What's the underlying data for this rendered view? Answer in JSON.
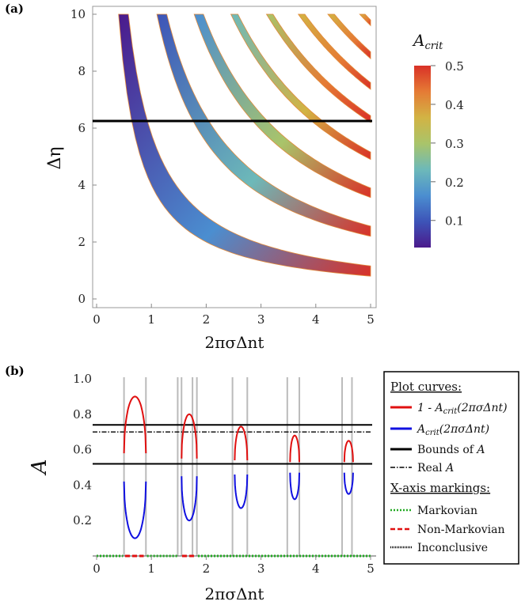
{
  "chart_data": [
    {
      "panel_label": "(a)",
      "type": "heatmap",
      "xlabel": "2πσΔnt",
      "ylabel": "Δη",
      "xlim": [
        0,
        5
      ],
      "ylim": [
        0,
        10
      ],
      "x_ticks": [
        "0",
        "1",
        "2",
        "3",
        "4",
        "5"
      ],
      "y_ticks": [
        "0",
        "2",
        "4",
        "6",
        "8",
        "10"
      ],
      "colorbar": {
        "title": "A_crit",
        "range": [
          0.03,
          0.5
        ],
        "ticks": [
          "0.1",
          "0.2",
          "0.3",
          "0.4",
          "0.5"
        ],
        "colors": [
          "#4b1a8c",
          "#3d54b8",
          "#4b8ed0",
          "#6db9b9",
          "#a9c46a",
          "#d2b344",
          "#e57b35",
          "#d93127"
        ]
      },
      "bands": [
        {
          "index": 1,
          "x_at_y10_from": 0.4,
          "x_at_y10_to": 0.58,
          "x_at_y2_from": 2.0,
          "x_at_y2_to": 2.85,
          "tail_y_at_x5": 0.62
        },
        {
          "index": 2,
          "x_at_y10_from": 1.1,
          "x_at_y10_to": 1.28
        },
        {
          "index": 3,
          "x_at_y10_from": 1.78,
          "x_at_y10_to": 1.95
        },
        {
          "index": 4,
          "x_at_y10_from": 2.45,
          "x_at_y10_to": 2.58
        },
        {
          "index": 5,
          "x_at_y10_from": 3.1,
          "x_at_y10_to": 3.22
        },
        {
          "index": 6,
          "x_at_y10_from": 3.68,
          "x_at_y10_to": 3.8
        },
        {
          "index": 7,
          "x_at_y10_from": 4.22,
          "x_at_y10_to": 4.34
        },
        {
          "index": 8,
          "x_at_y10_from": 4.8,
          "x_at_y10_to": 4.9
        }
      ],
      "reference_line": {
        "y": 6.25,
        "color": "#000000"
      }
    },
    {
      "panel_label": "(b)",
      "type": "line",
      "xlabel": "2πσΔnt",
      "ylabel": "A",
      "xlim": [
        0,
        5
      ],
      "ylim": [
        0,
        1
      ],
      "x_ticks": [
        "0",
        "1",
        "2",
        "3",
        "4",
        "5"
      ],
      "y_ticks": [
        "0.2",
        "0.4",
        "0.6",
        "0.8",
        "1.0"
      ],
      "arcs": [
        {
          "x_from": 0.5,
          "x_to": 0.9,
          "upper_peak": 0.9,
          "lower_min": 0.1,
          "edge_upper": 0.58,
          "edge_lower": 0.42
        },
        {
          "x_from": 1.55,
          "x_to": 1.83,
          "upper_peak": 0.8,
          "lower_min": 0.2,
          "edge_upper": 0.55,
          "edge_lower": 0.45
        },
        {
          "x_from": 2.52,
          "x_to": 2.75,
          "upper_peak": 0.73,
          "lower_min": 0.27,
          "edge_upper": 0.54,
          "edge_lower": 0.46
        },
        {
          "x_from": 3.53,
          "x_to": 3.7,
          "upper_peak": 0.68,
          "lower_min": 0.32,
          "edge_upper": 0.53,
          "edge_lower": 0.47
        },
        {
          "x_from": 4.52,
          "x_to": 4.68,
          "upper_peak": 0.65,
          "lower_min": 0.35,
          "edge_upper": 0.53,
          "edge_lower": 0.47
        }
      ],
      "bounds_of_A": [
        0.74,
        0.52
      ],
      "real_A": 0.7,
      "gray_vlines_x": [
        0.5,
        0.9,
        1.48,
        1.55,
        1.75,
        1.83,
        2.48,
        2.75,
        3.48,
        3.7,
        4.48,
        4.66
      ],
      "axis_markings": [
        {
          "type": "Markovian",
          "from": 0.0,
          "to": 0.48
        },
        {
          "type": "Non-Markovian",
          "from": 0.52,
          "to": 0.86
        },
        {
          "type": "Markovian",
          "from": 0.92,
          "to": 1.48
        },
        {
          "type": "Non-Markovian",
          "from": 1.56,
          "to": 1.82
        },
        {
          "type": "Markovian",
          "from": 1.85,
          "to": 5.0
        }
      ],
      "colors": {
        "upper": "#e01010",
        "lower": "#1010e0",
        "bounds": "#000000",
        "markovian": "#22aa22",
        "non_markovian": "#e01010",
        "inconclusive": "#000000",
        "gray": "#bbbbbb"
      },
      "legend": {
        "head_curves": "Plot curves:",
        "curve_upper_pre": "1 - ",
        "curve_sub": "crit",
        "curve_arg": "(2πσΔnt)",
        "bounds": "Bounds of ",
        "real": "Real ",
        "var": "A",
        "head_markings": "X-axis markings:",
        "markovian": "Markovian",
        "non_markovian": "Non-Markovian",
        "inconclusive": "Inconclusive"
      }
    }
  ]
}
